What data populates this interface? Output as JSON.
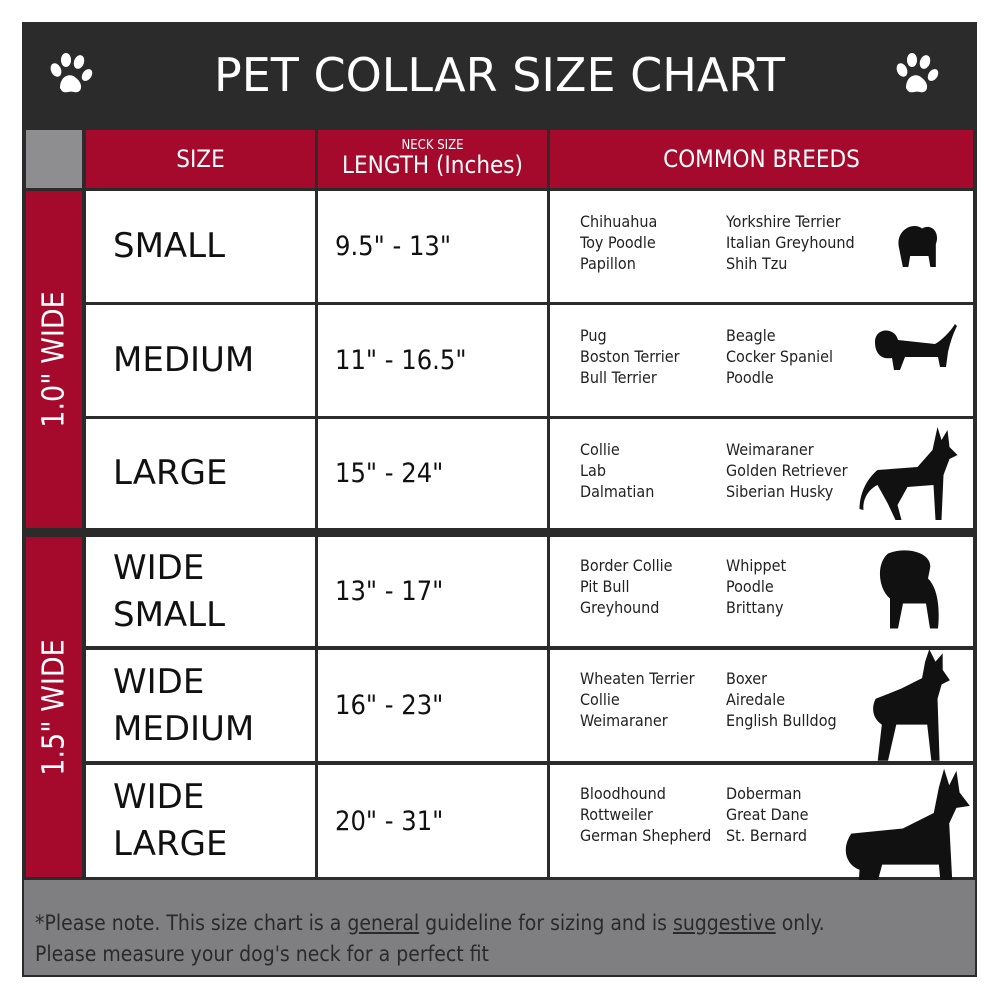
{
  "title": "PET COLLAR SIZE CHART",
  "header": {
    "size": "SIZE",
    "neck_size": "NECK SIZE",
    "length": "LENGTH (Inches)",
    "breeds": "COMMON BREEDS"
  },
  "groups": [
    {
      "label": "1.0\" WIDE"
    },
    {
      "label": "1.5\" WIDE"
    }
  ],
  "rows": [
    {
      "size": "SMALL",
      "length": "9.5\" - 13\"",
      "breeds_a": [
        "Chihuahua",
        "Toy Poodle",
        "Papillon"
      ],
      "breeds_b": [
        "Yorkshire Terrier",
        "Italian Greyhound",
        "Shih Tzu"
      ]
    },
    {
      "size": "MEDIUM",
      "length": "11\" - 16.5\"",
      "breeds_a": [
        "Pug",
        "Boston Terrier",
        "Bull Terrier"
      ],
      "breeds_b": [
        "Beagle",
        "Cocker Spaniel",
        "Poodle"
      ]
    },
    {
      "size": "LARGE",
      "length": "15\" - 24\"",
      "breeds_a": [
        "Collie",
        "Lab",
        "Dalmatian"
      ],
      "breeds_b": [
        "Weimaraner",
        "Golden Retriever",
        "Siberian Husky"
      ]
    },
    {
      "size": "WIDE SMALL",
      "length": "13\" - 17\"",
      "breeds_a": [
        "Border Collie",
        "Pit Bull",
        "Greyhound"
      ],
      "breeds_b": [
        "Whippet",
        "Poodle",
        "Brittany"
      ]
    },
    {
      "size": "WIDE MEDIUM",
      "length": "16\" - 23\"",
      "breeds_a": [
        "Wheaten Terrier",
        "Collie",
        "Weimaraner"
      ],
      "breeds_b": [
        "Boxer",
        "Airedale",
        "English Bulldog"
      ]
    },
    {
      "size": "WIDE LARGE",
      "length": "20\" - 31\"",
      "breeds_a": [
        "Bloodhound",
        "Rottweiler",
        "German Shepherd"
      ],
      "breeds_b": [
        "Doberman",
        "Great Dane",
        "St. Bernard"
      ]
    }
  ],
  "footer": {
    "p1": "*Please note. This size chart is a",
    "u1": "general",
    "p2": "guideline for sizing and is",
    "u2": "suggestive",
    "p3": "only.",
    "line2": "Please measure your dog's neck for a perfect fit"
  },
  "colors": {
    "crimson": "#a50a2d",
    "dark": "#2b2b2b",
    "footer_gray": "#7f7f81"
  }
}
